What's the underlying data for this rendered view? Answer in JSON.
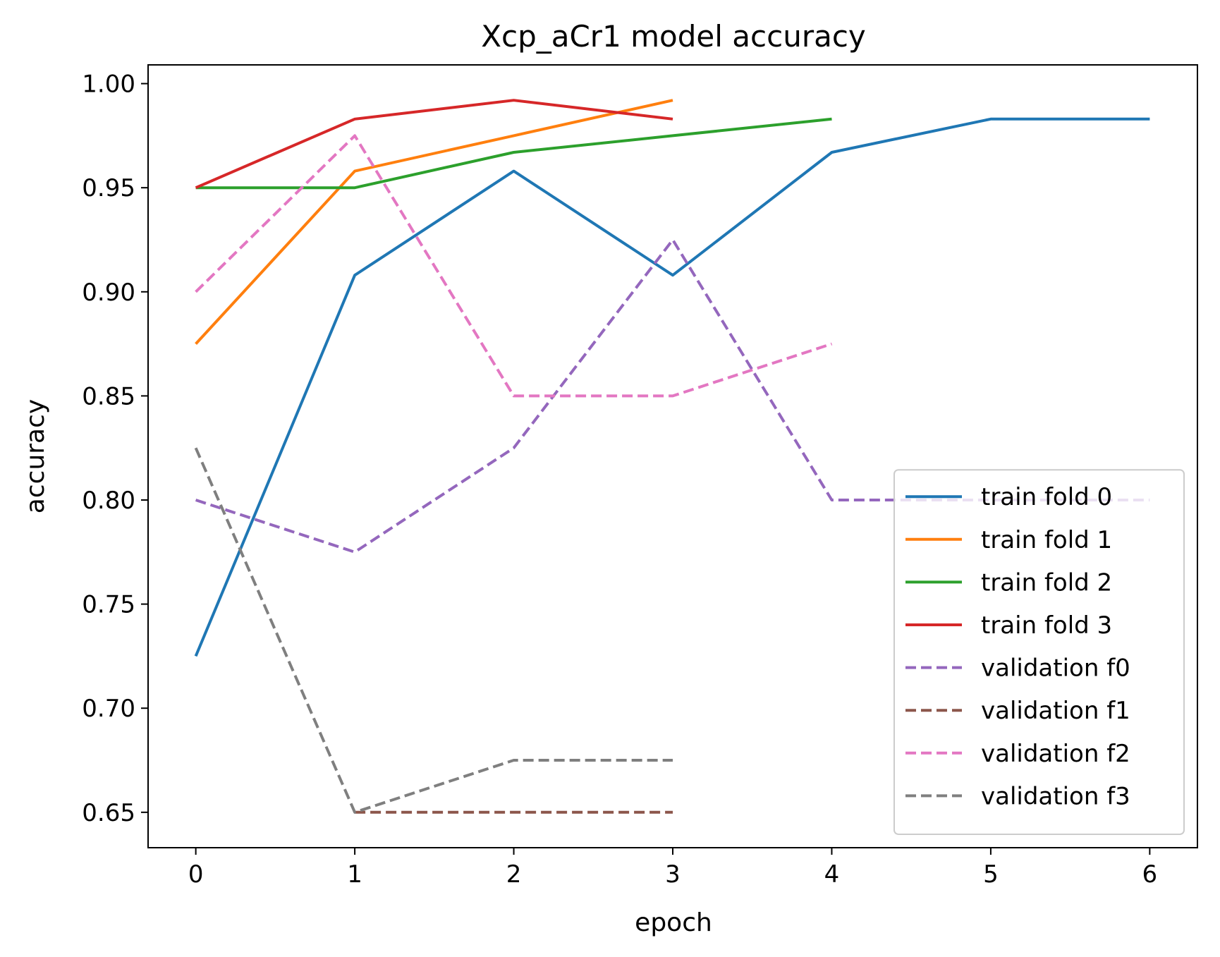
{
  "chart_data": {
    "type": "line",
    "title": "Xcp_aCr1 model accuracy",
    "xlabel": "epoch",
    "ylabel": "accuracy",
    "xlim": [
      -0.3,
      6.3
    ],
    "ylim": [
      0.633,
      1.009
    ],
    "xticks": [
      0,
      1,
      2,
      3,
      4,
      5,
      6
    ],
    "yticks": [
      "0.65",
      "0.70",
      "0.75",
      "0.80",
      "0.85",
      "0.90",
      "0.95",
      "1.00"
    ],
    "grid": false,
    "legend_position": "lower-right",
    "series": [
      {
        "name": "train fold 0",
        "color": "#1f77b4",
        "dash": false,
        "x": [
          0,
          1,
          2,
          3,
          4,
          5,
          6
        ],
        "y": [
          0.725,
          0.908,
          0.958,
          0.908,
          0.967,
          0.983,
          0.983
        ]
      },
      {
        "name": "train fold 1",
        "color": "#ff7f0e",
        "dash": false,
        "x": [
          0,
          1,
          2,
          3
        ],
        "y": [
          0.875,
          0.958,
          0.975,
          0.992
        ]
      },
      {
        "name": "train fold 2",
        "color": "#2ca02c",
        "dash": false,
        "x": [
          0,
          1,
          2,
          3,
          4
        ],
        "y": [
          0.95,
          0.95,
          0.967,
          0.975,
          0.983
        ]
      },
      {
        "name": "train fold 3",
        "color": "#d62728",
        "dash": false,
        "x": [
          0,
          1,
          2,
          3
        ],
        "y": [
          0.95,
          0.983,
          0.992,
          0.983
        ]
      },
      {
        "name": "validation f0",
        "color": "#9467bd",
        "dash": true,
        "x": [
          0,
          1,
          2,
          3,
          4,
          5,
          6
        ],
        "y": [
          0.8,
          0.775,
          0.825,
          0.925,
          0.8,
          0.8,
          0.8
        ]
      },
      {
        "name": "validation f1",
        "color": "#8c564b",
        "dash": true,
        "x": [
          1,
          2,
          3
        ],
        "y": [
          0.65,
          0.65,
          0.65
        ]
      },
      {
        "name": "validation f2",
        "color": "#e377c2",
        "dash": true,
        "x": [
          0,
          1,
          2,
          3,
          4
        ],
        "y": [
          0.9,
          0.975,
          0.85,
          0.85,
          0.875
        ]
      },
      {
        "name": "validation f3",
        "color": "#7f7f7f",
        "dash": true,
        "x": [
          0,
          1,
          2,
          3
        ],
        "y": [
          0.825,
          0.65,
          0.675,
          0.675
        ]
      }
    ]
  }
}
